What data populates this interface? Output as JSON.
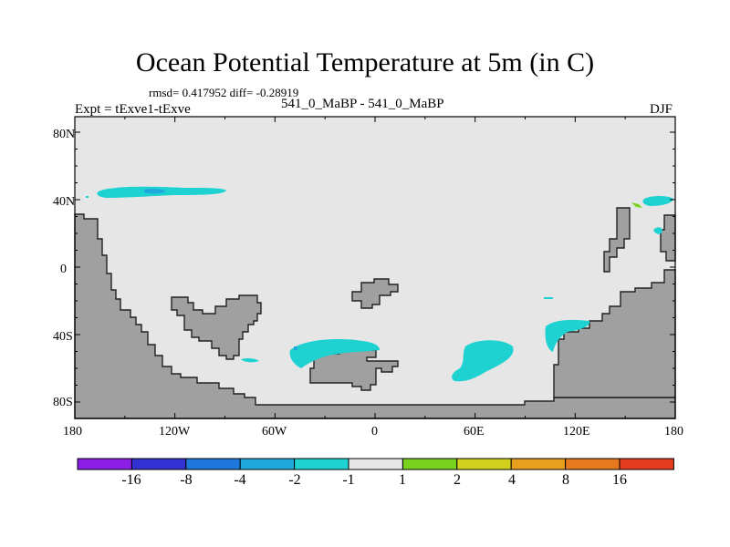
{
  "title": "Ocean Potential Temperature at 5m (in C)",
  "stats": "rmsd= 0.417952 diff= -0.28919",
  "expt": "Expt = tExve1-tExve",
  "case_label": "541_0_MaBP - 541_0_MaBP",
  "season": "DJF",
  "map": {
    "lon_labels": [
      "180",
      "120W",
      "60W",
      "0",
      "60E",
      "120E",
      "180"
    ],
    "lat_labels": [
      "80N",
      "40N",
      "0",
      "40S",
      "80S"
    ]
  },
  "colorbar": {
    "labels": [
      "-16",
      "-8",
      "-4",
      "-2",
      "-1",
      "1",
      "2",
      "4",
      "8",
      "16"
    ],
    "colors": [
      "#8c1ee6",
      "#3232d2",
      "#1e78dc",
      "#1eaadc",
      "#1ed2d2",
      "#e6e6e6",
      "#78d21e",
      "#d2d21e",
      "#e6a01e",
      "#e6781e",
      "#e63c1e"
    ]
  },
  "colors": {
    "land": "#a0a0a0",
    "ocean": "#e6e6e6",
    "cyan": "#1ed2d2",
    "blue": "#1eaadc",
    "green": "#78d21e"
  }
}
